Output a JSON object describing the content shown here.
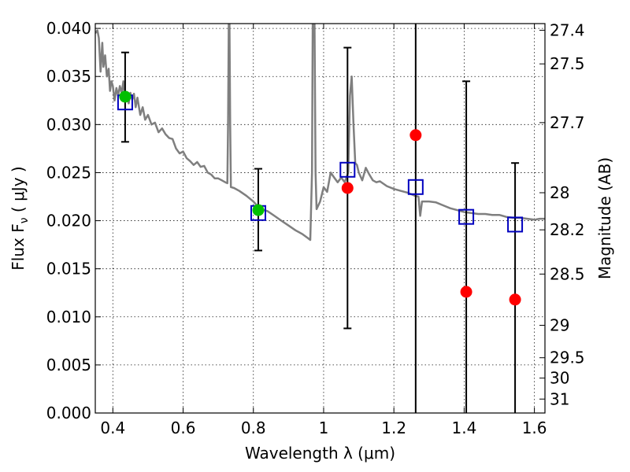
{
  "chart_data": {
    "type": "scatter",
    "xlabel": "Wavelength  λ (μm)",
    "ylabel_main": "Flux  F",
    "ylabel_sub": "ν",
    "ylabel_unit": "  ( μJy )",
    "ylabel_right": "Magnitude (AB)",
    "xlim": [
      0.35,
      1.63
    ],
    "ylim": [
      0.0,
      0.0405
    ],
    "grid": true,
    "x_ticks": [
      0.4,
      0.6,
      0.8,
      1.0,
      1.2,
      1.4,
      1.6
    ],
    "x_tick_labels": [
      "0.4",
      "0.6",
      "0.8",
      "1",
      "1.2",
      "1.4",
      "1.6"
    ],
    "y_ticks": [
      0.0,
      0.005,
      0.01,
      0.015,
      0.02,
      0.025,
      0.03,
      0.035,
      0.04
    ],
    "y_tick_labels": [
      "0.000",
      "0.005",
      "0.010",
      "0.015",
      "0.020",
      "0.025",
      "0.030",
      "0.035",
      "0.040"
    ],
    "right_ticks": [
      {
        "flux": 0.03981,
        "label": "27.4"
      },
      {
        "flux": 0.03631,
        "label": "27.5"
      },
      {
        "flux": 0.0302,
        "label": "27.7"
      },
      {
        "flux": 0.02291,
        "label": "28"
      },
      {
        "flux": 0.01905,
        "label": "28.2"
      },
      {
        "flux": 0.01445,
        "label": "28.5"
      },
      {
        "flux": 0.00912,
        "label": "29"
      },
      {
        "flux": 0.00575,
        "label": "29.5"
      },
      {
        "flux": 0.00363,
        "label": "30"
      },
      {
        "flux": 0.00145,
        "label": "31"
      }
    ],
    "model_spectrum": {
      "color": "#7f7f7f",
      "points": [
        [
          0.35,
          0.0395
        ],
        [
          0.356,
          0.0398
        ],
        [
          0.36,
          0.039
        ],
        [
          0.365,
          0.0355
        ],
        [
          0.37,
          0.0385
        ],
        [
          0.373,
          0.036
        ],
        [
          0.378,
          0.0372
        ],
        [
          0.383,
          0.035
        ],
        [
          0.388,
          0.0358
        ],
        [
          0.392,
          0.0335
        ],
        [
          0.396,
          0.0345
        ],
        [
          0.4,
          0.034
        ],
        [
          0.405,
          0.0325
        ],
        [
          0.41,
          0.0338
        ],
        [
          0.415,
          0.033
        ],
        [
          0.42,
          0.034
        ],
        [
          0.425,
          0.0333
        ],
        [
          0.43,
          0.0345
        ],
        [
          0.435,
          0.0325
        ],
        [
          0.44,
          0.0332
        ],
        [
          0.445,
          0.0322
        ],
        [
          0.45,
          0.0333
        ],
        [
          0.455,
          0.0326
        ],
        [
          0.46,
          0.0332
        ],
        [
          0.465,
          0.0318
        ],
        [
          0.47,
          0.0328
        ],
        [
          0.478,
          0.031
        ],
        [
          0.485,
          0.0318
        ],
        [
          0.492,
          0.0305
        ],
        [
          0.5,
          0.031
        ],
        [
          0.51,
          0.03
        ],
        [
          0.52,
          0.0302
        ],
        [
          0.53,
          0.0292
        ],
        [
          0.54,
          0.0296
        ],
        [
          0.55,
          0.029
        ],
        [
          0.56,
          0.0286
        ],
        [
          0.57,
          0.0285
        ],
        [
          0.58,
          0.0275
        ],
        [
          0.59,
          0.027
        ],
        [
          0.6,
          0.0272
        ],
        [
          0.61,
          0.0265
        ],
        [
          0.62,
          0.0262
        ],
        [
          0.63,
          0.0258
        ],
        [
          0.64,
          0.0261
        ],
        [
          0.65,
          0.0256
        ],
        [
          0.66,
          0.0257
        ],
        [
          0.67,
          0.025
        ],
        [
          0.68,
          0.0248
        ],
        [
          0.69,
          0.0244
        ],
        [
          0.7,
          0.0244
        ],
        [
          0.71,
          0.0242
        ],
        [
          0.72,
          0.024
        ],
        [
          0.726,
          0.0239
        ],
        [
          0.728,
          0.03
        ],
        [
          0.73,
          0.0405
        ],
        [
          0.732,
          0.0405
        ],
        [
          0.734,
          0.03
        ],
        [
          0.736,
          0.0235
        ],
        [
          0.745,
          0.0234
        ],
        [
          0.76,
          0.0231
        ],
        [
          0.78,
          0.0226
        ],
        [
          0.8,
          0.022
        ],
        [
          0.82,
          0.0212
        ],
        [
          0.84,
          0.021
        ],
        [
          0.86,
          0.0205
        ],
        [
          0.88,
          0.02
        ],
        [
          0.9,
          0.0195
        ],
        [
          0.92,
          0.019
        ],
        [
          0.94,
          0.0186
        ],
        [
          0.955,
          0.0182
        ],
        [
          0.962,
          0.018
        ],
        [
          0.967,
          0.025
        ],
        [
          0.969,
          0.0405
        ],
        [
          0.974,
          0.0405
        ],
        [
          0.977,
          0.025
        ],
        [
          0.98,
          0.0212
        ],
        [
          0.99,
          0.022
        ],
        [
          1.0,
          0.0235
        ],
        [
          1.01,
          0.023
        ],
        [
          1.02,
          0.025
        ],
        [
          1.03,
          0.0245
        ],
        [
          1.04,
          0.024
        ],
        [
          1.05,
          0.0245
        ],
        [
          1.06,
          0.024
        ],
        [
          1.07,
          0.025
        ],
        [
          1.075,
          0.033
        ],
        [
          1.08,
          0.035
        ],
        [
          1.085,
          0.03
        ],
        [
          1.09,
          0.026
        ],
        [
          1.095,
          0.0258
        ],
        [
          1.1,
          0.025
        ],
        [
          1.11,
          0.0242
        ],
        [
          1.12,
          0.0255
        ],
        [
          1.13,
          0.0248
        ],
        [
          1.14,
          0.0242
        ],
        [
          1.15,
          0.024
        ],
        [
          1.16,
          0.0241
        ],
        [
          1.18,
          0.0236
        ],
        [
          1.2,
          0.0233
        ],
        [
          1.22,
          0.0231
        ],
        [
          1.24,
          0.0229
        ],
        [
          1.26,
          0.0226
        ],
        [
          1.27,
          0.0225
        ],
        [
          1.275,
          0.0205
        ],
        [
          1.28,
          0.022
        ],
        [
          1.3,
          0.022
        ],
        [
          1.32,
          0.0219
        ],
        [
          1.34,
          0.0216
        ],
        [
          1.36,
          0.0213
        ],
        [
          1.38,
          0.0211
        ],
        [
          1.4,
          0.0209
        ],
        [
          1.42,
          0.0208
        ],
        [
          1.44,
          0.0207
        ],
        [
          1.46,
          0.0207
        ],
        [
          1.48,
          0.0206
        ],
        [
          1.5,
          0.0206
        ],
        [
          1.52,
          0.0204
        ],
        [
          1.54,
          0.0203
        ],
        [
          1.56,
          0.0203
        ],
        [
          1.58,
          0.0202
        ],
        [
          1.6,
          0.0201
        ],
        [
          1.615,
          0.0202
        ],
        [
          1.63,
          0.0202
        ]
      ]
    },
    "observed_points": [
      {
        "x": 0.435,
        "y": 0.0329,
        "color": "#00bf00",
        "yerr_low": 0.0282,
        "yerr_high": 0.0375
      },
      {
        "x": 0.814,
        "y": 0.0211,
        "color": "#00bf00",
        "yerr_low": 0.0169,
        "yerr_high": 0.0254
      },
      {
        "x": 1.068,
        "y": 0.0234,
        "color": "#ff0000",
        "yerr_low": 0.0088,
        "yerr_high": 0.038
      },
      {
        "x": 1.262,
        "y": 0.0289,
        "color": "#ff0000",
        "yerr_low": 0.0,
        "yerr_high": 0.0405
      },
      {
        "x": 1.406,
        "y": 0.0126,
        "color": "#ff0000",
        "yerr_low": 0.0,
        "yerr_high": 0.0345
      },
      {
        "x": 1.545,
        "y": 0.0118,
        "color": "#ff0000",
        "yerr_low": 0.0,
        "yerr_high": 0.026
      }
    ],
    "model_points": {
      "color": "#0000bf",
      "points": [
        {
          "x": 0.435,
          "y": 0.0323
        },
        {
          "x": 0.814,
          "y": 0.0208
        },
        {
          "x": 1.068,
          "y": 0.0253
        },
        {
          "x": 1.262,
          "y": 0.0235
        },
        {
          "x": 1.406,
          "y": 0.0204
        },
        {
          "x": 1.545,
          "y": 0.0196
        }
      ]
    }
  }
}
